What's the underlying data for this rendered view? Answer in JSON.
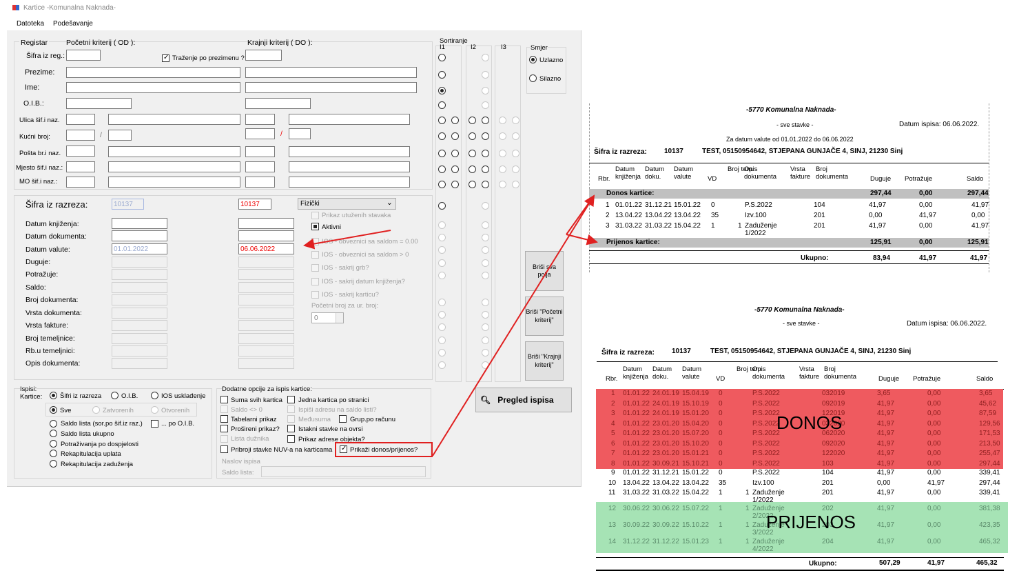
{
  "window": {
    "title": "Kartice -Komunalna Naknada-",
    "menu": [
      "Datoteka",
      "Podešavanje"
    ]
  },
  "form": {
    "registar": "Registar",
    "pocetni": "Početni kriterij ( OD ):",
    "krajnji": "Krajnji kriterij ( DO ):",
    "sifra_reg": "Šifra iz reg.:",
    "trazenje": "Traženje po prezimenu ?",
    "prezime": "Prezime:",
    "ime": "Ime:",
    "oib": "O.I.B.:",
    "ulica": "Ulica šif.i naz.",
    "kucni": "Kućni broj:",
    "posta": "Pošta br.i naz.",
    "mjesto": "Mjesto šif.i naz.:",
    "mo": "MO šif.i naz.:",
    "slash": "/",
    "sifra_razreza": "Šifra iz razreza:",
    "sifra_od": "10137",
    "sifra_do": "10137",
    "combo_tip": "Fizički",
    "datum_knjizenja": "Datum knjiženja:",
    "datum_dokumenta": "Datum dokumenta:",
    "datum_valute": "Datum valute:",
    "valuta_od": "01.01.2022",
    "valuta_do": "06.06.2022",
    "duguje": "Duguje:",
    "potrazuje": "Potražuje:",
    "saldo": "Saldo:",
    "broj_dok": "Broj dokumenta:",
    "vrsta_dok": "Vrsta dokumenta:",
    "vrsta_fak": "Vrsta fakture:",
    "broj_tem": "Broj temeljnice:",
    "rb_tem": "Rb.u temeljnici:",
    "opis_dok": "Opis dokumenta:",
    "prikaz_utuzenih": "Prikaz utuženih stavaka",
    "aktivni": "Aktivni",
    "ios1": "IOS - obveznici sa saldom = 0.00",
    "ios2": "IOS - obveznici sa saldom > 0",
    "ios3": "IOS - sakrij grb?",
    "ios4": "IOS - sakrij datum knjiženja?",
    "ios5": "IOS - sakrij karticu?",
    "pocetni_broj": "Početni broj za ur. broj:",
    "spin": "0",
    "sortiranje": "Sortiranje",
    "i1": "I1",
    "i2": "I2",
    "i3": "I3",
    "smjer": "Smjer",
    "uzlazno": "Uzlazno",
    "silazno": "Silazno",
    "btn_brisi_sva": "Briši sva polja",
    "btn_brisi_poc": "Briši \"Početni kriterij\"",
    "btn_brisi_kraj": "Briši \"Krajnji kriterij\"",
    "ispisi": "Ispisi:",
    "kartice": "Kartice:",
    "sifri_razreza": "Šifri iz razreza",
    "o_i_b": "O.I.B.",
    "ios_uskl": "IOS usklađenje",
    "sve": "Sve",
    "zatvorenih": "Zatvorenih",
    "otvorenih": "Otvorenih",
    "saldo_lista_sor": "Saldo lista (sor.po šif.iz raz.)",
    "po_oib": "... po O.I.B.",
    "saldo_lista_uk": "Saldo lista ukupno",
    "potrazivanja": "Potraživanja po dospjelosti",
    "rek_uplata": "Rekapitulacija uplata",
    "rek_zaduzenja": "Rekapitulacija zaduženja",
    "dodatne": "Dodatne opcije za ispis kartice:",
    "suma": "Suma svih kartica",
    "jedna": "Jedna kartica po stranici",
    "saldo_ne0": "Saldo <> 0",
    "ispisi_adresu": "Ispiši adresu na saldo listi?",
    "tabelarni": "Tabelarni prikaz",
    "medusuma": "Međusuma",
    "grup": "Grup.po računu",
    "prosireni": "Prošireni prikaz?",
    "istakni": "Istakni stavke na ovrsi",
    "lista_duznika": "Lista dužnika",
    "prikaz_adrese": "Prikaz adrese objekta?",
    "pribroji": "Pribroji stavke NUV-a na karticama",
    "prikazi_donos": "Prikaži donos/prijenos?",
    "naslov_ispisa": "Naslov ispisa",
    "saldo_lista": "Saldo lista:",
    "pregled": "Pregled ispisa"
  },
  "report1": {
    "title": "-5770 Komunalna Naknada-",
    "sub": "- sve stavke -",
    "datum_ispisa": "Datum ispisa: 06.06.2022.",
    "range": "Za datum valute od 01.01.2022 do 06.06.2022",
    "sifra_lbl": "Šifra iz razreza:",
    "sifra": "10137",
    "obveznik": "TEST, 05150954642, STJEPANA GUNJAČE 4, SINJ, 21230 Sinj",
    "headers": {
      "rbr": "Rbr.",
      "dk": "Datum knjiženja",
      "dd": "Datum doku.",
      "dv": "Datum valute",
      "vd": "VD",
      "bt": "Broj tem.",
      "opis": "Opis dokumenta",
      "vf": "Vrsta fakture",
      "bd": "Broj dokumenta",
      "dug": "Duguje",
      "pot": "Potražuje",
      "sal": "Saldo"
    },
    "donos": {
      "label": "Donos kartice:",
      "dug": "297,44",
      "pot": "0,00",
      "sal": "297,44"
    },
    "rows": [
      {
        "rbr": "1",
        "dk": "01.01.22",
        "dd": "31.12.21",
        "dv": "15.01.22",
        "vd": "0",
        "bt": "",
        "opis": "P.S.2022",
        "bd": "104",
        "dug": "41,97",
        "pot": "0,00",
        "sal": "41,97"
      },
      {
        "rbr": "2",
        "dk": "13.04.22",
        "dd": "13.04.22",
        "dv": "13.04.22",
        "vd": "35",
        "bt": "",
        "opis": "Izv.100",
        "bd": "201",
        "dug": "0,00",
        "pot": "41,97",
        "sal": "0,00"
      },
      {
        "rbr": "3",
        "dk": "31.03.22",
        "dd": "31.03.22",
        "dv": "15.04.22",
        "vd": "1",
        "bt": "1",
        "opis": "Zaduženje 1/2022",
        "bd": "201",
        "dug": "41,97",
        "pot": "0,00",
        "sal": "41,97"
      }
    ],
    "prijenos": {
      "label": "Prijenos kartice:",
      "dug": "125,91",
      "pot": "0,00",
      "sal": "125,91"
    },
    "ukupno": {
      "label": "Ukupno:",
      "dug": "83,94",
      "pot": "41,97",
      "sal": "41,97"
    }
  },
  "report2": {
    "title": "-5770 Komunalna Naknada-",
    "sub": "- sve stavke -",
    "datum_ispisa": "Datum ispisa: 06.06.2022.",
    "sifra_lbl": "Šifra iz razreza:",
    "sifra": "10137",
    "obveznik": "TEST, 05150954642, STJEPANA GUNJAČE 4, SINJ, 21230 Sinj",
    "headers": {
      "rbr": "Rbr.",
      "dk": "Datum knjiženja",
      "dd": "Datum doku.",
      "dv": "Datum valute",
      "vd": "VD",
      "bt": "Broj tem.",
      "opis": "Opis dokumenta",
      "vf": "Vrsta fakture",
      "bd": "Broj dokumenta",
      "dug": "Duguje",
      "pot": "Potražuje",
      "sal": "Saldo"
    },
    "rows": [
      {
        "rbr": "1",
        "dk": "01.01.22",
        "dd": "24.01.19",
        "dv": "15.04.19",
        "vd": "0",
        "bt": "",
        "opis": "P.S.2022",
        "bd": "032019",
        "dug": "3,65",
        "pot": "0,00",
        "sal": "3,65",
        "hl": "red"
      },
      {
        "rbr": "2",
        "dk": "01.01.22",
        "dd": "24.01.19",
        "dv": "15.10.19",
        "vd": "0",
        "bt": "",
        "opis": "P.S.2022",
        "bd": "092019",
        "dug": "41,97",
        "pot": "0,00",
        "sal": "45,62",
        "hl": "red"
      },
      {
        "rbr": "3",
        "dk": "01.01.22",
        "dd": "24.01.19",
        "dv": "15.01.20",
        "vd": "0",
        "bt": "",
        "opis": "P.S.2022",
        "bd": "122019",
        "dug": "41,97",
        "pot": "0,00",
        "sal": "87,59",
        "hl": "red"
      },
      {
        "rbr": "4",
        "dk": "01.01.22",
        "dd": "23.01.20",
        "dv": "15.04.20",
        "vd": "0",
        "bt": "",
        "opis": "P.S.2022",
        "bd": "032020",
        "dug": "41,97",
        "pot": "0,00",
        "sal": "129,56",
        "hl": "red"
      },
      {
        "rbr": "5",
        "dk": "01.01.22",
        "dd": "23.01.20",
        "dv": "15.07.20",
        "vd": "0",
        "bt": "",
        "opis": "P.S.2022",
        "bd": "062020",
        "dug": "41,97",
        "pot": "0,00",
        "sal": "171,53",
        "hl": "red"
      },
      {
        "rbr": "6",
        "dk": "01.01.22",
        "dd": "23.01.20",
        "dv": "15.10.20",
        "vd": "0",
        "bt": "",
        "opis": "P.S.2022",
        "bd": "092020",
        "dug": "41,97",
        "pot": "0,00",
        "sal": "213,50",
        "hl": "red"
      },
      {
        "rbr": "7",
        "dk": "01.01.22",
        "dd": "23.01.20",
        "dv": "15.01.21",
        "vd": "0",
        "bt": "",
        "opis": "P.S.2022",
        "bd": "122020",
        "dug": "41,97",
        "pot": "0,00",
        "sal": "255,47",
        "hl": "red"
      },
      {
        "rbr": "8",
        "dk": "01.01.22",
        "dd": "30.09.21",
        "dv": "15.10.21",
        "vd": "0",
        "bt": "",
        "opis": "P.S.2022",
        "bd": "103",
        "dug": "41,97",
        "pot": "0,00",
        "sal": "297,44",
        "hl": "red"
      },
      {
        "rbr": "9",
        "dk": "01.01.22",
        "dd": "31.12.21",
        "dv": "15.01.22",
        "vd": "0",
        "bt": "",
        "opis": "P.S.2022",
        "bd": "104",
        "dug": "41,97",
        "pot": "0,00",
        "sal": "339,41",
        "hl": ""
      },
      {
        "rbr": "10",
        "dk": "13.04.22",
        "dd": "13.04.22",
        "dv": "13.04.22",
        "vd": "35",
        "bt": "",
        "opis": "Izv.100",
        "bd": "201",
        "dug": "0,00",
        "pot": "41,97",
        "sal": "297,44",
        "hl": ""
      },
      {
        "rbr": "11",
        "dk": "31.03.22",
        "dd": "31.03.22",
        "dv": "15.04.22",
        "vd": "1",
        "bt": "1",
        "opis": "Zaduženje 1/2022",
        "bd": "201",
        "dug": "41,97",
        "pot": "0,00",
        "sal": "339,41",
        "hl": ""
      },
      {
        "rbr": "12",
        "dk": "30.06.22",
        "dd": "30.06.22",
        "dv": "15.07.22",
        "vd": "1",
        "bt": "1",
        "opis": "Zaduženje 2/2022",
        "bd": "202",
        "dug": "41,97",
        "pot": "0,00",
        "sal": "381,38",
        "hl": "green"
      },
      {
        "rbr": "13",
        "dk": "30.09.22",
        "dd": "30.09.22",
        "dv": "15.10.22",
        "vd": "1",
        "bt": "1",
        "opis": "Zaduženje 3/2022",
        "bd": "203",
        "dug": "41,97",
        "pot": "0,00",
        "sal": "423,35",
        "hl": "green"
      },
      {
        "rbr": "14",
        "dk": "31.12.22",
        "dd": "31.12.22",
        "dv": "15.01.23",
        "vd": "1",
        "bt": "1",
        "opis": "Zaduženje 4/2022",
        "bd": "204",
        "dug": "41,97",
        "pot": "0,00",
        "sal": "465,32",
        "hl": "green"
      }
    ],
    "ukupno": {
      "label": "Ukupno:",
      "dug": "507,29",
      "pot": "41,97",
      "sal": "465,32"
    },
    "overlay_donos": "DONOS",
    "overlay_prijenos": "PRIJENOS"
  },
  "colors": {
    "donos_bg": "#ef5a5f",
    "prijenos_bg": "#a6e3b5",
    "annotation": "#e02020",
    "gray_band": "#c0c0c0"
  }
}
